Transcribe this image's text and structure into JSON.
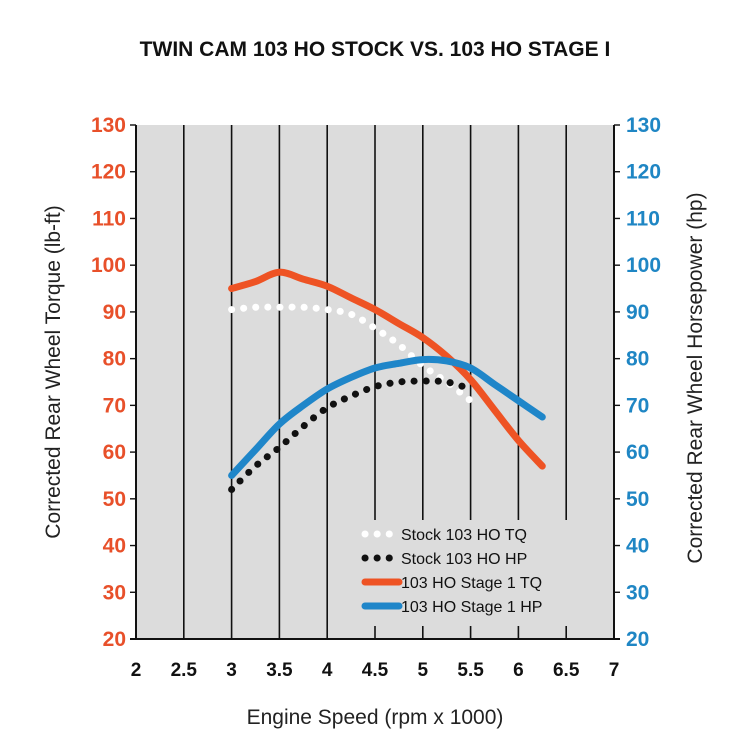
{
  "chart_data": {
    "type": "line",
    "title": "TWIN CAM 103 HO STOCK VS. 103 HO STAGE I",
    "xlabel": "Engine Speed (rpm x 1000)",
    "ylabel_left": "Corrected Rear Wheel Torque (lb-ft)",
    "ylabel_right": "Corrected Rear Wheel Horsepower (hp)",
    "xlim": [
      2,
      7
    ],
    "ylim_left": [
      20,
      130
    ],
    "ylim_right": [
      20,
      130
    ],
    "x_ticks": [
      "2",
      "2.5",
      "3",
      "3.5",
      "4",
      "4.5",
      "5",
      "5.5",
      "6",
      "6.5",
      "7"
    ],
    "y_ticks_left": [
      "130",
      "120",
      "110",
      "100",
      "90",
      "80",
      "70",
      "60",
      "50",
      "40",
      "30",
      "20"
    ],
    "y_ticks_right": [
      "130",
      "120",
      "110",
      "100",
      "90",
      "80",
      "70",
      "60",
      "50",
      "40",
      "30",
      "20"
    ],
    "grid": "vertical",
    "legend_position": "bottom-right",
    "colors": {
      "left_axis": "#e8502a",
      "right_axis": "#1f86c4",
      "plot_bg": "#dcdcdc",
      "stock_tq": "#ffffff",
      "stock_hp": "#111111",
      "stage1_tq": "#ee5324",
      "stage1_hp": "#1f86c9"
    },
    "series": [
      {
        "name": "Stock 103 HO TQ",
        "style": "dotted-white",
        "x": [
          3.0,
          3.25,
          3.5,
          3.75,
          4.0,
          4.25,
          4.5,
          4.75,
          5.0,
          5.25,
          5.5
        ],
        "values": [
          90.5,
          91,
          91,
          91,
          90.5,
          89.5,
          86.5,
          83,
          78.5,
          75,
          71
        ]
      },
      {
        "name": "Stock 103 HO HP",
        "style": "dotted-black",
        "x": [
          3.0,
          3.25,
          3.5,
          3.75,
          4.0,
          4.25,
          4.5,
          4.75,
          5.0,
          5.25,
          5.5
        ],
        "values": [
          52,
          57,
          61,
          65.5,
          69.5,
          72,
          74,
          75,
          75.2,
          75,
          73.5
        ]
      },
      {
        "name": "103 HO Stage 1 TQ",
        "style": "solid-orange",
        "x": [
          3.0,
          3.25,
          3.5,
          3.75,
          4.0,
          4.25,
          4.5,
          4.75,
          5.0,
          5.25,
          5.5,
          5.75,
          6.0,
          6.25
        ],
        "values": [
          95,
          96.5,
          98.5,
          97,
          95.5,
          93,
          90.5,
          87.5,
          84.5,
          80.5,
          75.5,
          69,
          62.5,
          57
        ]
      },
      {
        "name": "103 HO Stage 1 HP",
        "style": "solid-blue",
        "x": [
          3.0,
          3.25,
          3.5,
          3.75,
          4.0,
          4.25,
          4.5,
          4.75,
          5.0,
          5.25,
          5.5,
          5.75,
          6.0,
          6.25
        ],
        "values": [
          55,
          60.5,
          66,
          70,
          73.5,
          76,
          78,
          79,
          79.8,
          79.5,
          78,
          74.5,
          71,
          67.5
        ]
      }
    ]
  }
}
